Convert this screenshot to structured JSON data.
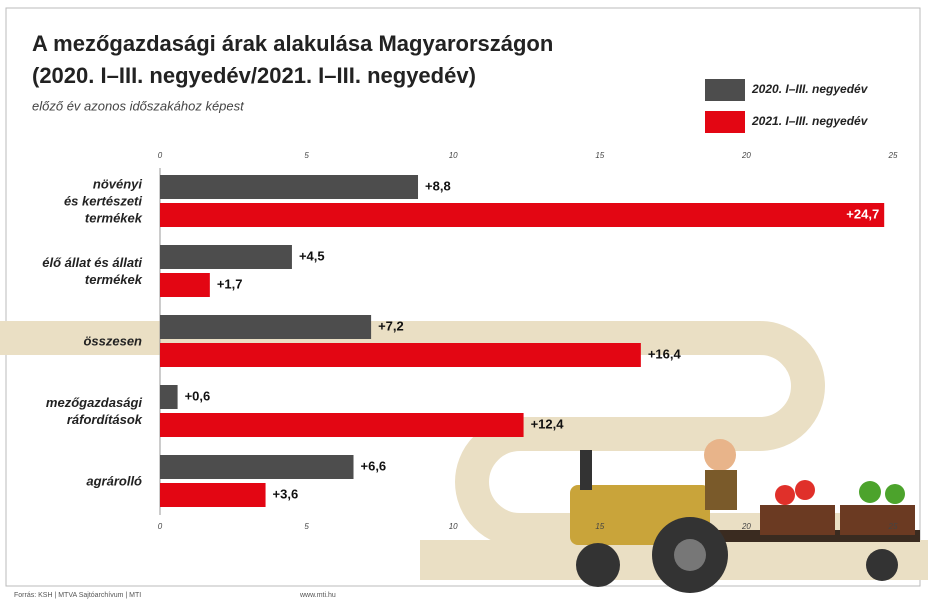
{
  "title": "A mezőgazdasági árak alakulása Magyarországon",
  "title_line2": "(2020. I–III. negyedév/2021. I–III. negyedév)",
  "subtitle": "előző év azonos időszakához képest",
  "source": "Forrás: KSH | MTVA Sajtóarchívum | MTI",
  "website": "www.mti.hu",
  "chart_data": {
    "type": "hbar",
    "categories": [
      "növényi\nés kertészeti\ntermékek",
      "élő állat és állati\ntermékek",
      "összesen",
      "mezőgazdasági\nráfordítások",
      "agrárolló"
    ],
    "series": [
      {
        "name": "2020. I–III. negyedév",
        "color": "#4d4d4d",
        "values": [
          8.8,
          4.5,
          7.2,
          0.6,
          6.6
        ],
        "value_labels": [
          "+8,8",
          "+4,5",
          "+7,2",
          "+0,6",
          "+6,6"
        ]
      },
      {
        "name": "2021. I–III. negyedév",
        "color": "#e30613",
        "values": [
          24.7,
          1.7,
          16.4,
          12.4,
          3.6
        ],
        "value_labels": [
          "+24,7",
          "+1,7",
          "+16,4",
          "+12,4",
          "+3,6"
        ]
      }
    ],
    "xlim": [
      0,
      25
    ],
    "xticks": [
      0,
      5,
      10,
      15,
      20,
      25
    ],
    "legend": "top-right"
  }
}
